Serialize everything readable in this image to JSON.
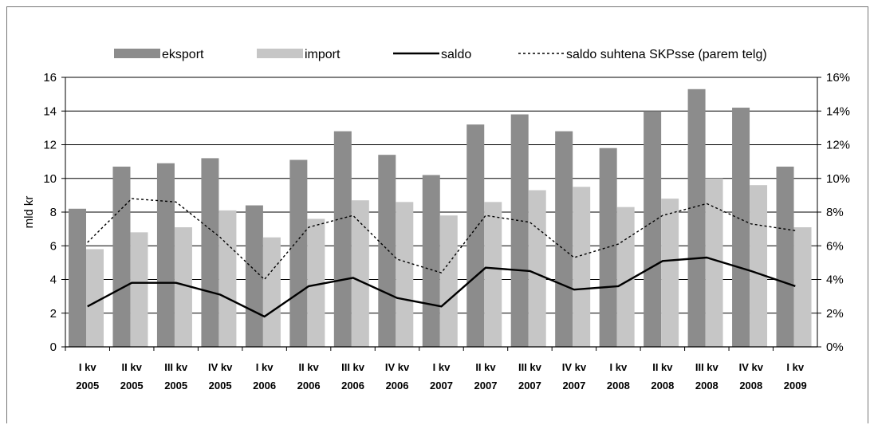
{
  "chart_data": {
    "type": "bar",
    "ylabel": "mld kr",
    "ylim": [
      0,
      16
    ],
    "y_ticks": [
      "0",
      "2",
      "4",
      "6",
      "8",
      "10",
      "12",
      "14",
      "16"
    ],
    "y2lim": [
      0,
      16
    ],
    "y2_ticks": [
      "0%",
      "2%",
      "4%",
      "6%",
      "8%",
      "10%",
      "12%",
      "14%",
      "16%"
    ],
    "grid": true,
    "legend_position": "top",
    "categories": [
      [
        "I kv",
        "2005"
      ],
      [
        "II kv",
        "2005"
      ],
      [
        "III kv",
        "2005"
      ],
      [
        "IV kv",
        "2005"
      ],
      [
        "I kv",
        "2006"
      ],
      [
        "II kv",
        "2006"
      ],
      [
        "III kv",
        "2006"
      ],
      [
        "IV kv",
        "2006"
      ],
      [
        "I kv",
        "2007"
      ],
      [
        "II kv",
        "2007"
      ],
      [
        "III kv",
        "2007"
      ],
      [
        "IV kv",
        "2007"
      ],
      [
        "I kv",
        "2008"
      ],
      [
        "II kv",
        "2008"
      ],
      [
        "III kv",
        "2008"
      ],
      [
        "IV kv",
        "2008"
      ],
      [
        "I kv",
        "2009"
      ]
    ],
    "series": [
      {
        "name": "eksport",
        "kind": "bar",
        "color": "#8c8c8c",
        "values": [
          8.2,
          10.7,
          10.9,
          11.2,
          8.4,
          11.1,
          12.8,
          11.4,
          10.2,
          13.2,
          13.8,
          12.8,
          11.8,
          14.0,
          15.3,
          14.2,
          10.7
        ]
      },
      {
        "name": "import",
        "kind": "bar",
        "color": "#c6c6c6",
        "values": [
          5.8,
          6.8,
          7.1,
          8.1,
          6.5,
          7.6,
          8.7,
          8.6,
          7.8,
          8.6,
          9.3,
          9.5,
          8.3,
          8.8,
          10.0,
          9.6,
          7.1
        ]
      },
      {
        "name": "saldo",
        "kind": "line",
        "color": "#000000",
        "dash": "solid",
        "values": [
          2.4,
          3.8,
          3.8,
          3.1,
          1.8,
          3.6,
          4.1,
          2.9,
          2.4,
          4.7,
          4.5,
          3.4,
          3.6,
          5.1,
          5.3,
          4.5,
          3.6
        ]
      },
      {
        "name": "saldo suhtena SKPsse (parem telg)",
        "kind": "line",
        "axis": "right",
        "color": "#000000",
        "dash": "dotted",
        "values": [
          6.2,
          8.8,
          8.6,
          6.5,
          4.0,
          7.1,
          7.8,
          5.2,
          4.4,
          7.8,
          7.4,
          5.3,
          6.1,
          7.8,
          8.5,
          7.3,
          6.9
        ]
      }
    ]
  }
}
